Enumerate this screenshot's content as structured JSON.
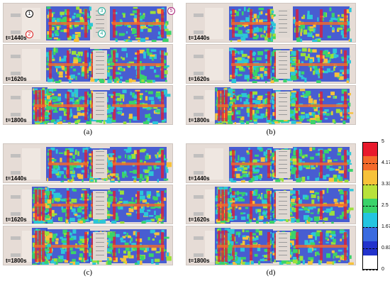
{
  "panels": [
    {
      "id": "a",
      "label": "(a)",
      "times": [
        "t=1440s",
        "t=1620s",
        "t=1800s"
      ]
    },
    {
      "id": "b",
      "label": "(b)",
      "times": [
        "t=1440s",
        "t=1620s",
        "t=1800s"
      ]
    },
    {
      "id": "c",
      "label": "(c)",
      "times": [
        "t=1440s",
        "t=1620s",
        "t=1800s"
      ]
    },
    {
      "id": "d",
      "label": "(d)",
      "times": [
        "t=1440s",
        "t=1620s",
        "t=1800s"
      ]
    }
  ],
  "markers": [
    "1",
    "2",
    "3",
    "4",
    "5"
  ],
  "colorbar": {
    "ticks": [
      "5",
      "4.17",
      "3.33",
      "2.5",
      "1.67",
      "0.83",
      "0"
    ],
    "colors": [
      "#e8192c",
      "#f46a2a",
      "#f7c23a",
      "#b8e23b",
      "#3ad36a",
      "#23c5e0",
      "#3a6be0",
      "#2233cc",
      "#ffffff"
    ]
  }
}
